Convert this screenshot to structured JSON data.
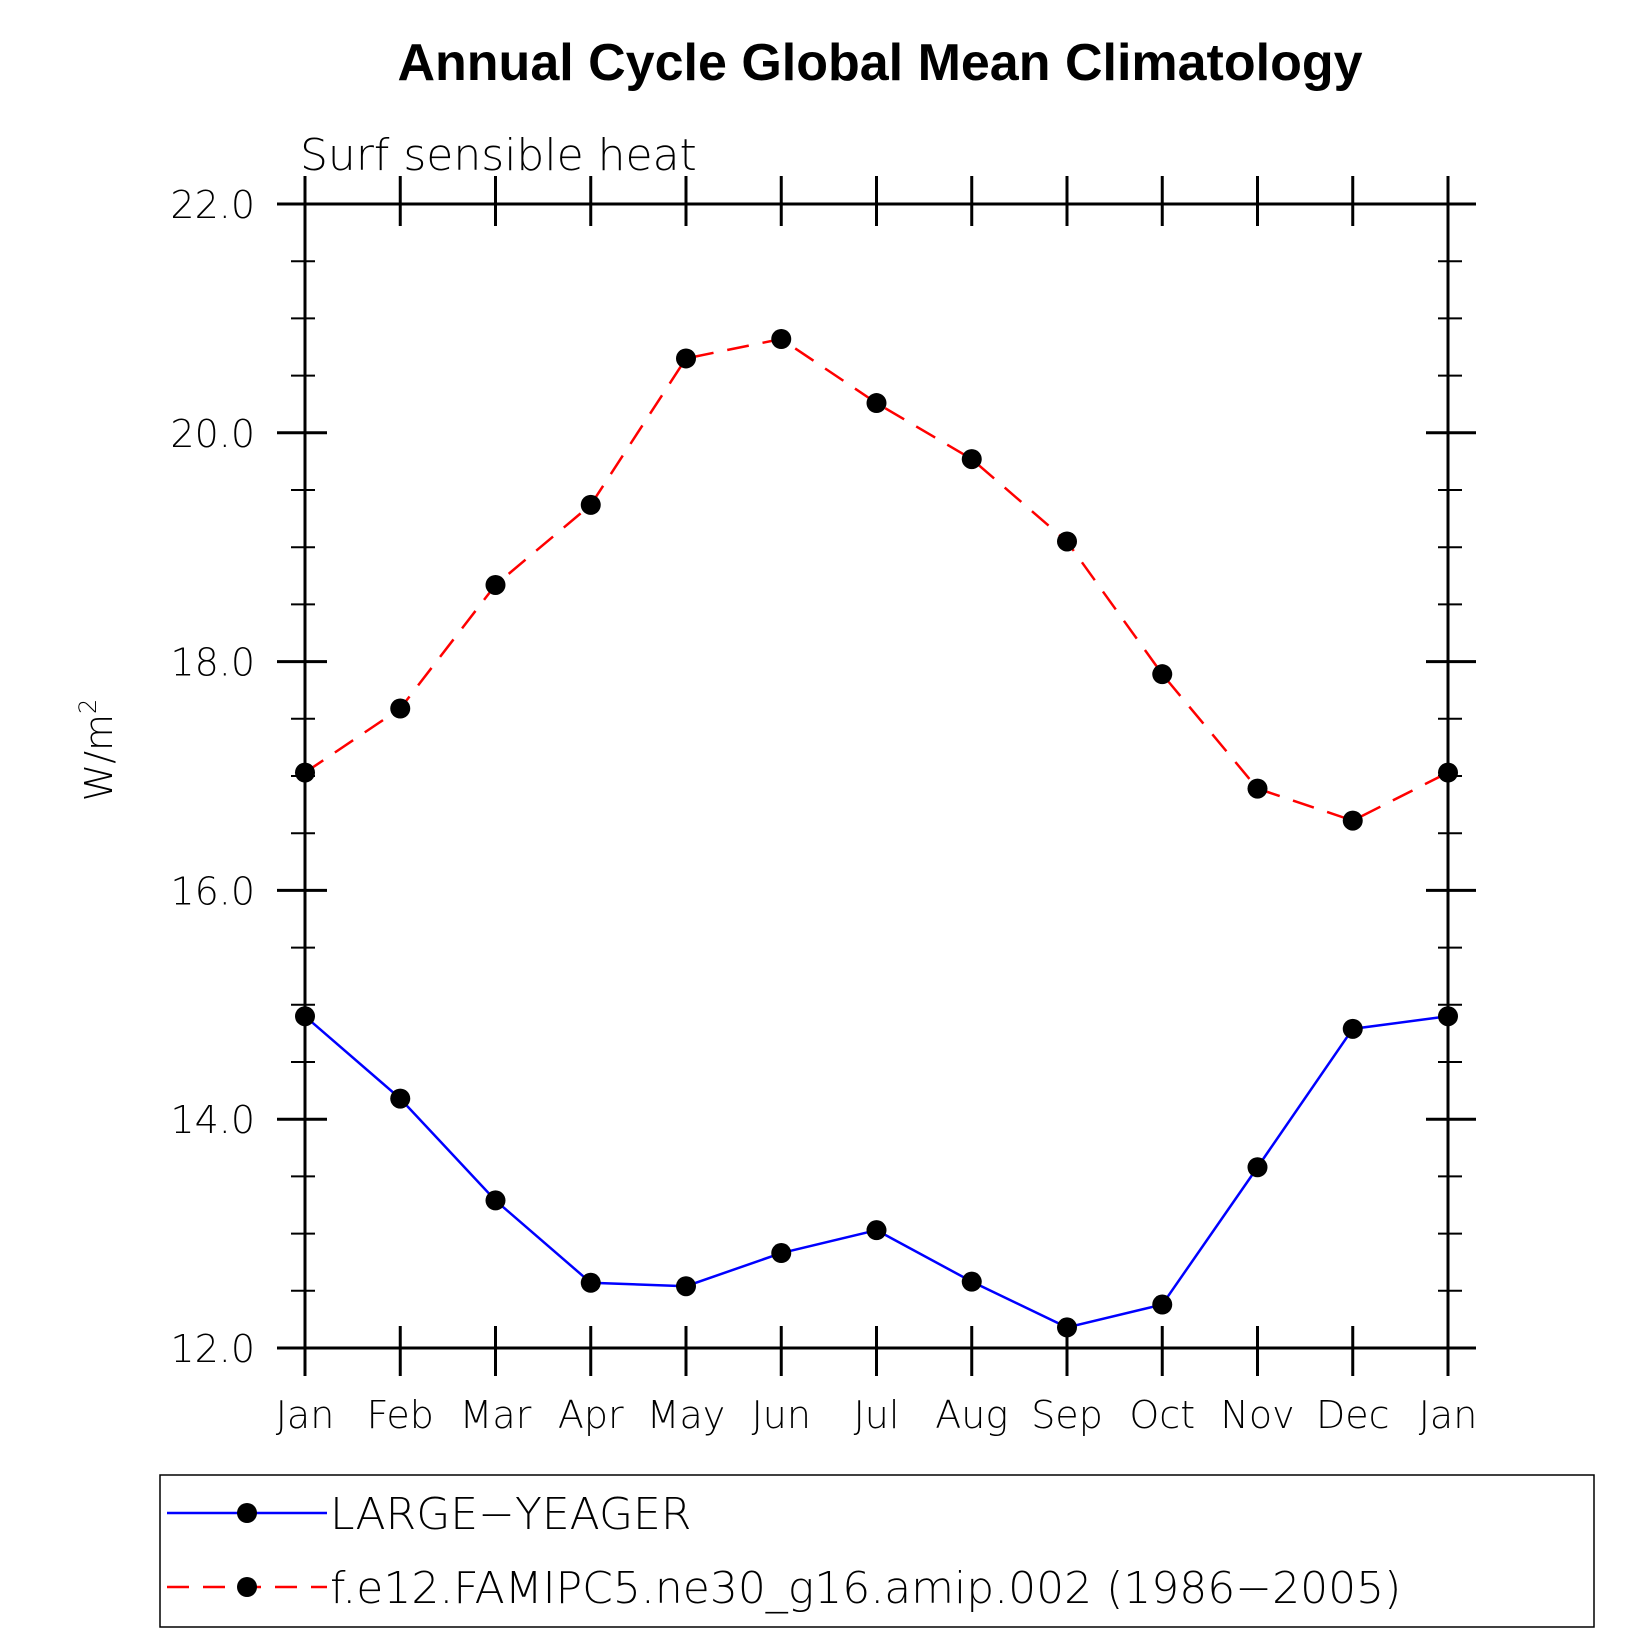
{
  "chart_data": {
    "type": "line",
    "title": "Annual Cycle Global Mean Climatology",
    "subtitle": "Surf sensible heat",
    "ylabel": "W/m",
    "ylabel_superscript": "2",
    "xlabel": "",
    "categories": [
      "Jan",
      "Feb",
      "Mar",
      "Apr",
      "May",
      "Jun",
      "Jul",
      "Aug",
      "Sep",
      "Oct",
      "Nov",
      "Dec",
      "Jan"
    ],
    "ylim": [
      12.0,
      22.0
    ],
    "yticks": [
      "12.0",
      "14.0",
      "16.0",
      "18.0",
      "20.0",
      "22.0"
    ],
    "ytick_values": [
      12,
      14,
      16,
      18,
      20,
      22
    ],
    "yminor_step": 0.5,
    "grid": false,
    "legend_position": "bottom",
    "series": [
      {
        "name": "LARGE−YEAGER",
        "color": "#0000ff",
        "style": "solid",
        "values": [
          14.9,
          14.18,
          13.29,
          12.57,
          12.54,
          12.83,
          13.03,
          12.58,
          12.18,
          12.38,
          13.58,
          14.79,
          14.9
        ]
      },
      {
        "name": "f.e12.FAMIPC5.ne30_g16.amip.002 (1986−2005)",
        "color": "#ff0000",
        "style": "dashed",
        "values": [
          17.03,
          17.59,
          18.67,
          19.37,
          20.65,
          20.82,
          20.26,
          19.77,
          19.05,
          17.89,
          16.89,
          16.61,
          17.03
        ]
      }
    ],
    "marker": "filled-circle",
    "marker_color": "#000000"
  }
}
